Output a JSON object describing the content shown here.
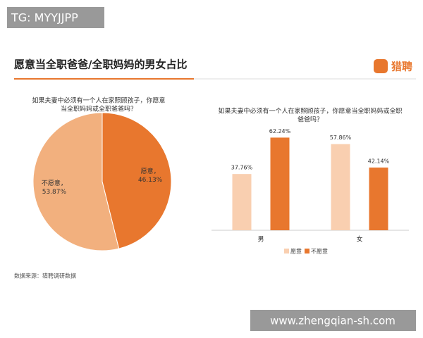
{
  "header": {
    "watermark": "TG: MYYJJPP",
    "title": "愿意当全职爸爸/全职妈妈的男女占比",
    "logo": "猎聘"
  },
  "footer": {
    "source": "数据来源：猎聘调研数据",
    "url": "www.zhengqian-sh.com"
  },
  "chart_data": [
    {
      "type": "pie",
      "subtitle": [
        "如果夫妻中必须有一个人在家照顾孩子，你愿意",
        "当全职妈妈或全职爸爸吗？"
      ],
      "categories": [
        "愿意，",
        "不愿意，"
      ],
      "values": [
        46.13,
        53.87
      ],
      "value_labels": [
        "46.13%",
        "53.87%"
      ],
      "colors": [
        "#e8772e",
        "#f2b07e"
      ]
    },
    {
      "type": "bar",
      "subtitle": [
        "如果夫妻中必须有一个人在家照顾孩子，你愿意当全职妈妈或全职",
        "爸爸吗？"
      ],
      "categories": [
        "男",
        "女"
      ],
      "ylim": [
        0,
        70
      ],
      "legend": "bottom",
      "series": [
        {
          "name": "愿意",
          "color": "#f9cfb0",
          "values": [
            37.76,
            57.86
          ],
          "value_labels": [
            "37.76%",
            "57.86%"
          ]
        },
        {
          "name": "不愿意",
          "color": "#e8772e",
          "values": [
            62.24,
            42.14
          ],
          "value_labels": [
            "62.24%",
            "42.14%"
          ]
        }
      ]
    }
  ]
}
